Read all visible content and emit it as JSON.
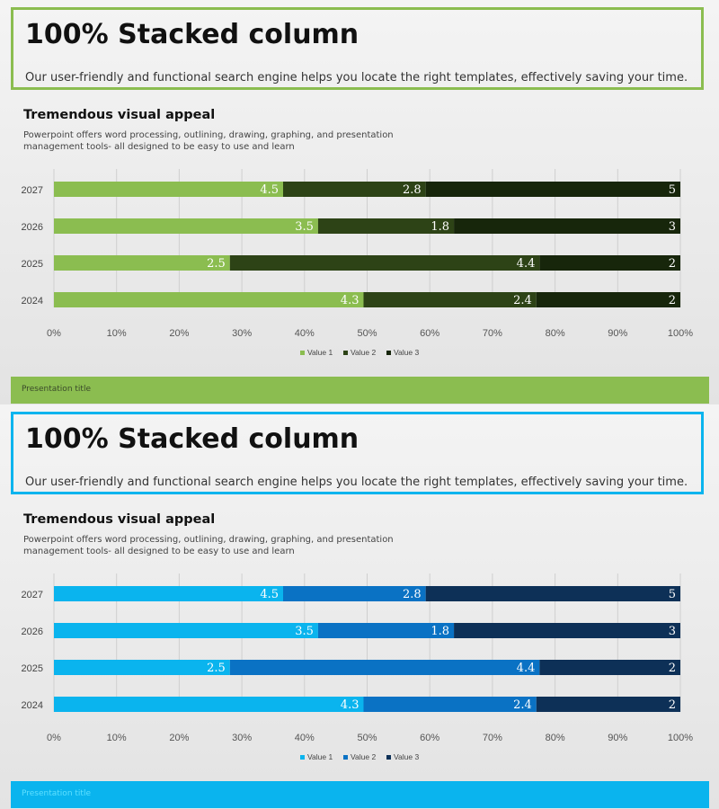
{
  "slides": [
    {
      "title": "100% Stacked column",
      "description": "Our user-friendly and functional search engine helps you locate the right templates, effectively saving your time.",
      "subtitle": "Tremendous visual appeal",
      "subtitle_description": "Powerpoint offers word processing, outlining, drawing, graphing, and presentation management tools- all designed to be easy to use and learn",
      "footer": "Presentation title",
      "colors": {
        "accent": "#8bbd50",
        "footer_bg": "#8bbd50",
        "footer_text": "#3a4a2a",
        "series": [
          "#8bbd50",
          "#2d4316",
          "#17260b"
        ]
      }
    },
    {
      "title": "100% Stacked column",
      "description": "Our user-friendly and functional search engine helps you locate the right templates, effectively saving your time.",
      "subtitle": "Tremendous visual appeal",
      "subtitle_description": "Powerpoint offers word processing, outlining, drawing, graphing, and presentation management tools- all designed to be easy to use and learn",
      "footer": "Presentation title",
      "colors": {
        "accent": "#0ab4ee",
        "footer_bg": "#0ab4ee",
        "footer_text": "#5fe0ff",
        "series": [
          "#0ab4ee",
          "#0a72c4",
          "#0d3057"
        ]
      }
    }
  ],
  "chart_data": [
    {
      "type": "bar",
      "orientation": "horizontal",
      "stacking": "percent",
      "categories": [
        "2027",
        "2026",
        "2025",
        "2024"
      ],
      "series": [
        {
          "name": "Value  1",
          "values": [
            4.5,
            3.5,
            2.5,
            4.3
          ]
        },
        {
          "name": "Value  2",
          "values": [
            2.8,
            1.8,
            4.4,
            2.4
          ]
        },
        {
          "name": "Value  3",
          "values": [
            5,
            3,
            2,
            2
          ]
        }
      ],
      "x_ticks": [
        "0%",
        "10%",
        "20%",
        "30%",
        "40%",
        "50%",
        "60%",
        "70%",
        "80%",
        "90%",
        "100%"
      ],
      "xlim": [
        0,
        100
      ],
      "grid": "vertical",
      "legend": "bottom"
    },
    {
      "type": "bar",
      "orientation": "horizontal",
      "stacking": "percent",
      "categories": [
        "2027",
        "2026",
        "2025",
        "2024"
      ],
      "series": [
        {
          "name": "Value  1",
          "values": [
            4.5,
            3.5,
            2.5,
            4.3
          ]
        },
        {
          "name": "Value  2",
          "values": [
            2.8,
            1.8,
            4.4,
            2.4
          ]
        },
        {
          "name": "Value  3",
          "values": [
            5,
            3,
            2,
            2
          ]
        }
      ],
      "x_ticks": [
        "0%",
        "10%",
        "20%",
        "30%",
        "40%",
        "50%",
        "60%",
        "70%",
        "80%",
        "90%",
        "100%"
      ],
      "xlim": [
        0,
        100
      ],
      "grid": "vertical",
      "legend": "bottom"
    }
  ]
}
